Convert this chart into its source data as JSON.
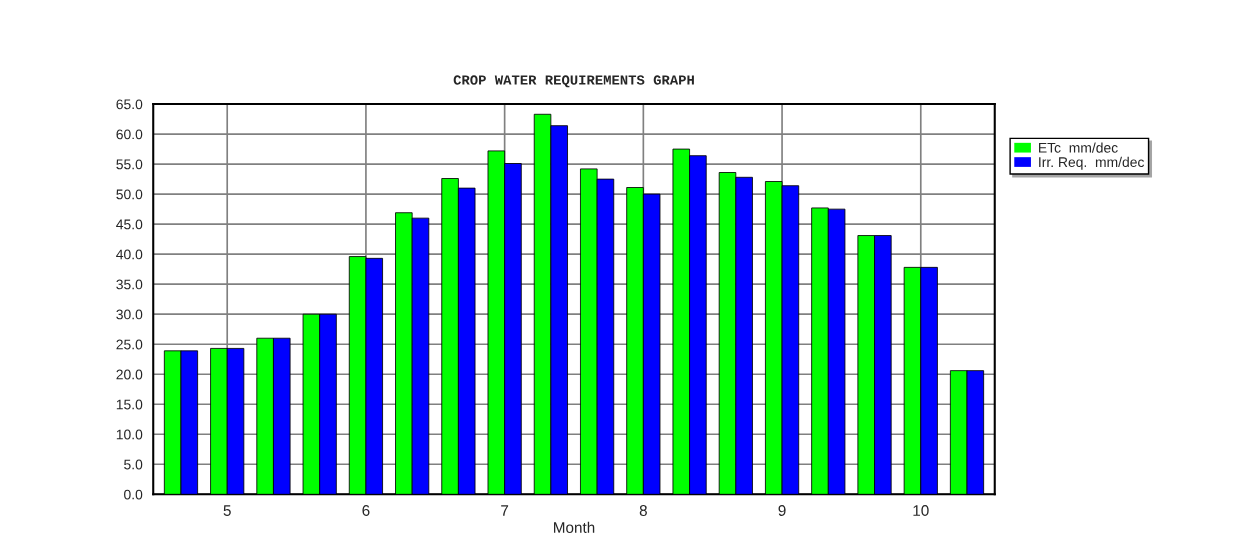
{
  "chart_data": {
    "type": "bar",
    "title": "CROP WATER REQUIREMENTS GRAPH",
    "xlabel": "Month",
    "categories": [
      null,
      "5",
      null,
      null,
      "6",
      null,
      null,
      "7",
      null,
      null,
      "8",
      null,
      null,
      "9",
      null,
      null,
      "10",
      null
    ],
    "series": [
      {
        "name": "ETc  mm/dec",
        "color": "#00ff00",
        "values": [
          23.9,
          24.3,
          26.0,
          30.0,
          39.6,
          46.9,
          52.6,
          57.2,
          63.3,
          54.2,
          51.1,
          57.5,
          53.6,
          52.1,
          47.7,
          43.1,
          37.8,
          20.6
        ]
      },
      {
        "name": "Irr. Req.  mm/dec",
        "color": "#0000ff",
        "values": [
          23.9,
          24.3,
          26.0,
          30.0,
          39.3,
          46.0,
          51.0,
          55.1,
          61.4,
          52.5,
          50.0,
          56.4,
          52.8,
          51.4,
          47.5,
          43.1,
          37.8,
          20.6
        ]
      }
    ],
    "ylim": [
      0,
      65
    ],
    "yticks": [
      {
        "value": 0,
        "label": "0.0"
      },
      {
        "value": 5,
        "label": "5.0"
      },
      {
        "value": 10,
        "label": "10.0"
      },
      {
        "value": 15,
        "label": "15.0"
      },
      {
        "value": 20,
        "label": "20.0"
      },
      {
        "value": 25,
        "label": "25.0"
      },
      {
        "value": 30,
        "label": "30.0"
      },
      {
        "value": 35,
        "label": "35.0"
      },
      {
        "value": 40,
        "label": "40.0"
      },
      {
        "value": 45,
        "label": "45.0"
      },
      {
        "value": 50,
        "label": "50.0"
      },
      {
        "value": 55,
        "label": "55.0"
      },
      {
        "value": 60,
        "label": "60.0"
      },
      {
        "value": 65,
        "label": "65.0"
      }
    ],
    "grid": true,
    "legend": "right"
  }
}
